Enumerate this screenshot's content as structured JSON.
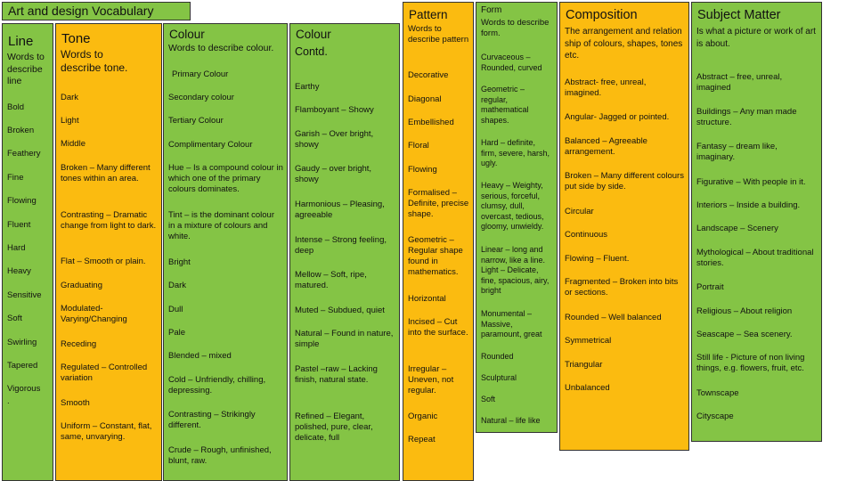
{
  "title": "Art and design Vocabulary",
  "line": {
    "heading": "Line",
    "subheading": "Words to describe line",
    "items": [
      "Bold",
      "Broken",
      "Feathery",
      "Fine",
      "Flowing",
      "Fluent",
      "Hard",
      "Heavy",
      "Sensitive",
      "Soft",
      "Swirling",
      "Tapered",
      "Vigorous",
      "."
    ]
  },
  "tone": {
    "heading": "Tone",
    "subheading": "Words to describe tone.",
    "items": [
      "Dark",
      "Light",
      "Middle",
      "Broken – Many different tones within an area.",
      "Contrasting – Dramatic change from light to dark.",
      "Flat – Smooth or plain.",
      "Graduating",
      "Modulated-Varying/Changing",
      "Receding",
      "Regulated – Controlled variation",
      "Smooth",
      "Uniform – Constant, flat, same, unvarying."
    ]
  },
  "colour": {
    "heading": "Colour",
    "subheading": "Words to describe colour.",
    "items": [
      "Primary Colour",
      "Secondary colour",
      "Tertiary Colour",
      "Complimentary Colour",
      "Hue – Is a compound colour in which one of the primary colours dominates.",
      "Tint – is the dominant colour in a mixture of colours and white.",
      "Bright",
      "Dark",
      "Dull",
      "Pale",
      "Blended – mixed",
      "Cold – Unfriendly, chilling, depressing.",
      "Contrasting – Strikingly different.",
      "Crude – Rough, unfinished, blunt, raw."
    ]
  },
  "colour_contd": {
    "heading": "Colour",
    "subheading": "Contd.",
    "items": [
      "Earthy",
      "Flamboyant – Showy",
      "Garish – Over bright, showy",
      "Gaudy – over bright, showy",
      "Harmonious – Pleasing, agreeable",
      "Intense – Strong feeling, deep",
      "Mellow – Soft, ripe, matured.",
      "Muted – Subdued, quiet",
      "Natural – Found in nature, simple",
      "Pastel –raw – Lacking finish, natural state.",
      "Refined – Elegant, polished, pure, clear, delicate, full"
    ]
  },
  "pattern": {
    "heading": "Pattern",
    "subheading": "Words to describe pattern",
    "items": [
      "Decorative",
      "Diagonal",
      "Embellished",
      "Floral",
      "Flowing",
      "Formalised – Definite, precise shape.",
      "Geometric – Regular shape found in mathematics.",
      "Horizontal",
      "Incised – Cut into the surface.",
      "Irregular – Uneven, not regular.",
      "Organic",
      "Repeat"
    ]
  },
  "form": {
    "heading": "Form",
    "subheading": "Words to describe form.",
    "items": [
      "Curvaceous – Rounded, curved",
      "Geometric – regular, mathematical shapes.",
      "Hard – definite, firm, severe, harsh, ugly.",
      "Heavy – Weighty, serious, forceful, clumsy, dull, overcast, tedious, gloomy, unwieldy.",
      "Linear – long and narrow, like a line. Light – Delicate, fine, spacious, airy, bright",
      "Monumental – Massive, paramount, great",
      "Rounded",
      "Sculptural",
      "Soft",
      "Natural – life like"
    ]
  },
  "composition": {
    "heading": "Composition",
    "subheading": "The arrangement and relation ship of colours, shapes, tones etc.",
    "items": [
      "Abstract- free, unreal, imagined.",
      "Angular- Jagged or pointed.",
      "Balanced – Agreeable arrangement.",
      "Broken – Many different colours put side by side.",
      "Circular",
      "Continuous",
      "Flowing – Fluent.",
      "Fragmented – Broken into bits or sections.",
      "Rounded – Well balanced",
      "Symmetrical",
      "Triangular",
      "Unbalanced"
    ]
  },
  "subject": {
    "heading": "Subject Matter",
    "subheading": "Is what a picture or work of art is about.",
    "items": [
      "Abstract – free, unreal, imagined",
      "Buildings – Any man made structure.",
      "Fantasy – dream like, imaginary.",
      "Figurative – With people in it.",
      "Interiors – Inside a building.",
      "Landscape – Scenery",
      "Mythological – About traditional stories.",
      "Portrait",
      "Religious – About religion",
      "Seascape – Sea scenery.",
      "Still life - Picture of non living things, e.g. flowers, fruit, etc.",
      "Townscape",
      "Cityscape"
    ]
  }
}
